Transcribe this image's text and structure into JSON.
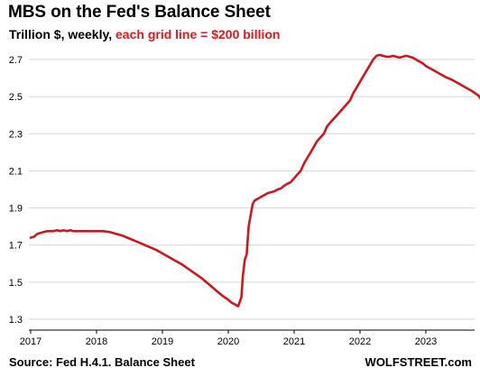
{
  "chart_data": {
    "type": "line",
    "title": "MBS on the Fed's Balance Sheet",
    "subtitle_plain": "Trillion $, weekly, ",
    "subtitle_accent": "each grid line = $200 billion",
    "source": "Source: Fed H.4.1. Balance Sheet",
    "brand": "WOLFSTREET.com",
    "xlabel": "",
    "ylabel": "",
    "xlim": [
      2017.0,
      2023.9
    ],
    "ylim": [
      1.3,
      2.76
    ],
    "y_ticks": [
      {
        "value": 1.3,
        "label": "1.3"
      },
      {
        "value": 1.5,
        "label": "1.5"
      },
      {
        "value": 1.7,
        "label": "1.7"
      },
      {
        "value": 1.9,
        "label": "1.9"
      },
      {
        "value": 2.1,
        "label": "2.1"
      },
      {
        "value": 2.3,
        "label": "2.3"
      },
      {
        "value": 2.5,
        "label": "2.5"
      },
      {
        "value": 2.7,
        "label": "2.7"
      }
    ],
    "x_ticks": [
      {
        "value": 2017,
        "label": "2017"
      },
      {
        "value": 2018,
        "label": "2018"
      },
      {
        "value": 2019,
        "label": "2019"
      },
      {
        "value": 2020,
        "label": "2020"
      },
      {
        "value": 2021,
        "label": "2021"
      },
      {
        "value": 2022,
        "label": "2022"
      },
      {
        "value": 2023,
        "label": "2023"
      }
    ],
    "grid": "horizontal",
    "line_color": "#d0161c",
    "series": [
      {
        "x": [
          2017.0,
          2017.05,
          2017.1,
          2017.15,
          2017.2,
          2017.25,
          2017.3,
          2017.35,
          2017.4,
          2017.45,
          2017.5,
          2017.55,
          2017.6,
          2017.65,
          2017.7,
          2017.75,
          2017.8,
          2017.85,
          2017.9,
          2017.95,
          2018.0,
          2018.1,
          2018.2,
          2018.3,
          2018.4,
          2018.5,
          2018.6,
          2018.7,
          2018.8,
          2018.9,
          2019.0,
          2019.1,
          2019.2,
          2019.3,
          2019.4,
          2019.5,
          2019.6,
          2019.7,
          2019.8,
          2019.9,
          2020.0,
          2020.05,
          2020.1,
          2020.15,
          2020.2,
          2020.22,
          2020.25,
          2020.28,
          2020.31,
          2020.34,
          2020.37,
          2020.4,
          2020.45,
          2020.5,
          2020.55,
          2020.6,
          2020.65,
          2020.7,
          2020.75,
          2020.8,
          2020.85,
          2020.9,
          2020.95,
          2021.0,
          2021.05,
          2021.1,
          2021.15,
          2021.2,
          2021.25,
          2021.3,
          2021.35,
          2021.4,
          2021.45,
          2021.5,
          2021.55,
          2021.6,
          2021.65,
          2021.7,
          2021.75,
          2021.8,
          2021.85,
          2021.9,
          2021.95,
          2022.0,
          2022.05,
          2022.1,
          2022.15,
          2022.2,
          2022.25,
          2022.3,
          2022.35,
          2022.4,
          2022.45,
          2022.5,
          2022.55,
          2022.6,
          2022.65,
          2022.7,
          2022.75,
          2022.8,
          2022.85,
          2022.9,
          2022.95,
          2023.0,
          2023.1,
          2023.2,
          2023.3,
          2023.4,
          2023.5,
          2023.6,
          2023.7,
          2023.8,
          2023.85
        ],
        "y": [
          1.74,
          1.745,
          1.76,
          1.765,
          1.77,
          1.775,
          1.775,
          1.775,
          1.78,
          1.775,
          1.78,
          1.775,
          1.78,
          1.775,
          1.775,
          1.775,
          1.775,
          1.775,
          1.775,
          1.775,
          1.775,
          1.775,
          1.77,
          1.76,
          1.75,
          1.735,
          1.72,
          1.705,
          1.69,
          1.675,
          1.655,
          1.635,
          1.615,
          1.595,
          1.57,
          1.545,
          1.52,
          1.49,
          1.46,
          1.43,
          1.405,
          1.39,
          1.38,
          1.37,
          1.42,
          1.53,
          1.62,
          1.65,
          1.8,
          1.86,
          1.92,
          1.94,
          1.95,
          1.96,
          1.97,
          1.98,
          1.985,
          1.99,
          2.0,
          2.005,
          2.02,
          2.03,
          2.04,
          2.06,
          2.08,
          2.1,
          2.14,
          2.17,
          2.2,
          2.23,
          2.26,
          2.28,
          2.3,
          2.34,
          2.36,
          2.38,
          2.4,
          2.42,
          2.44,
          2.46,
          2.48,
          2.52,
          2.55,
          2.58,
          2.61,
          2.64,
          2.67,
          2.7,
          2.72,
          2.725,
          2.72,
          2.715,
          2.715,
          2.72,
          2.715,
          2.71,
          2.715,
          2.72,
          2.715,
          2.71,
          2.7,
          2.69,
          2.68,
          2.665,
          2.645,
          2.625,
          2.605,
          2.59,
          2.57,
          2.55,
          2.53,
          2.505,
          2.48
        ]
      }
    ]
  }
}
